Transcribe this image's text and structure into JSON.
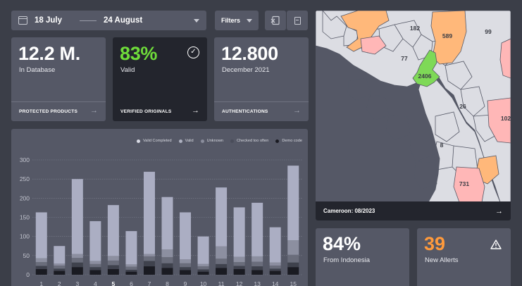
{
  "date_range": {
    "start": "18 July",
    "end": "24 August"
  },
  "filters_label": "Filters",
  "kpis": [
    {
      "value": "12.2 M.",
      "label": "In Database",
      "footer": "PROTECTED PRODUCTS"
    },
    {
      "value": "83%",
      "label": "Valid",
      "footer": "VERIFIED ORIGINALS",
      "value_color": "#6fdc3a"
    },
    {
      "value": "12.800",
      "label": "December 2021",
      "footer": "AUTHENTICATIONS"
    }
  ],
  "map": {
    "footer": "Cameroon: 08/2023",
    "labels": [
      "182",
      "589",
      "99",
      "77",
      "2406",
      "26",
      "102",
      "8",
      "731"
    ],
    "colors": {
      "land": "#dcdde3",
      "highlight": "#7ed957",
      "orange": "#ffb87a",
      "pink": "#ffb7b7",
      "sea": "#555866"
    }
  },
  "stats": [
    {
      "value": "84%",
      "label": "From Indonesia"
    },
    {
      "value": "39",
      "label": "New Allerts",
      "value_color": "#ff9a3c"
    }
  ],
  "chart_data": {
    "type": "bar",
    "stacked": true,
    "categories": [
      "1",
      "2",
      "3",
      "4",
      "5",
      "6",
      "7",
      "8",
      "9",
      "10",
      "11",
      "12",
      "13",
      "14",
      "15"
    ],
    "highlighted_category": "5",
    "y_ticks": [
      "0",
      "50",
      "100",
      "150",
      "200",
      "250",
      "300"
    ],
    "ylim": [
      0,
      300
    ],
    "legend": [
      "Valid Completed",
      "Valid",
      "Unknown",
      "Checked too often",
      "Demo code"
    ],
    "legend_colors": [
      "#d8dae4",
      "#aeb1c0",
      "#8a8d9c",
      "#4a4d5a",
      "#1a1b22"
    ],
    "series": [
      {
        "name": "Demo code",
        "color": "#1a1b22",
        "values": [
          15,
          10,
          20,
          12,
          15,
          8,
          22,
          18,
          12,
          8,
          18,
          15,
          12,
          10,
          20
        ]
      },
      {
        "name": "Checked too often",
        "color": "#3f424d",
        "values": [
          8,
          6,
          12,
          8,
          10,
          5,
          14,
          12,
          8,
          6,
          10,
          8,
          10,
          6,
          12
        ]
      },
      {
        "name": "Unknown",
        "color": "#6a6d7b",
        "values": [
          10,
          8,
          12,
          8,
          12,
          8,
          12,
          16,
          10,
          8,
          14,
          10,
          12,
          8,
          20
        ]
      },
      {
        "name": "Valid",
        "color": "#8c8fa0",
        "values": [
          10,
          5,
          10,
          8,
          12,
          6,
          6,
          20,
          10,
          6,
          32,
          14,
          14,
          8,
          38
        ]
      },
      {
        "name": "Valid Completed",
        "color": "#abaec3",
        "values": [
          120,
          46,
          196,
          104,
          133,
          87,
          215,
          137,
          123,
          72,
          154,
          129,
          140,
          92,
          195
        ]
      }
    ]
  }
}
